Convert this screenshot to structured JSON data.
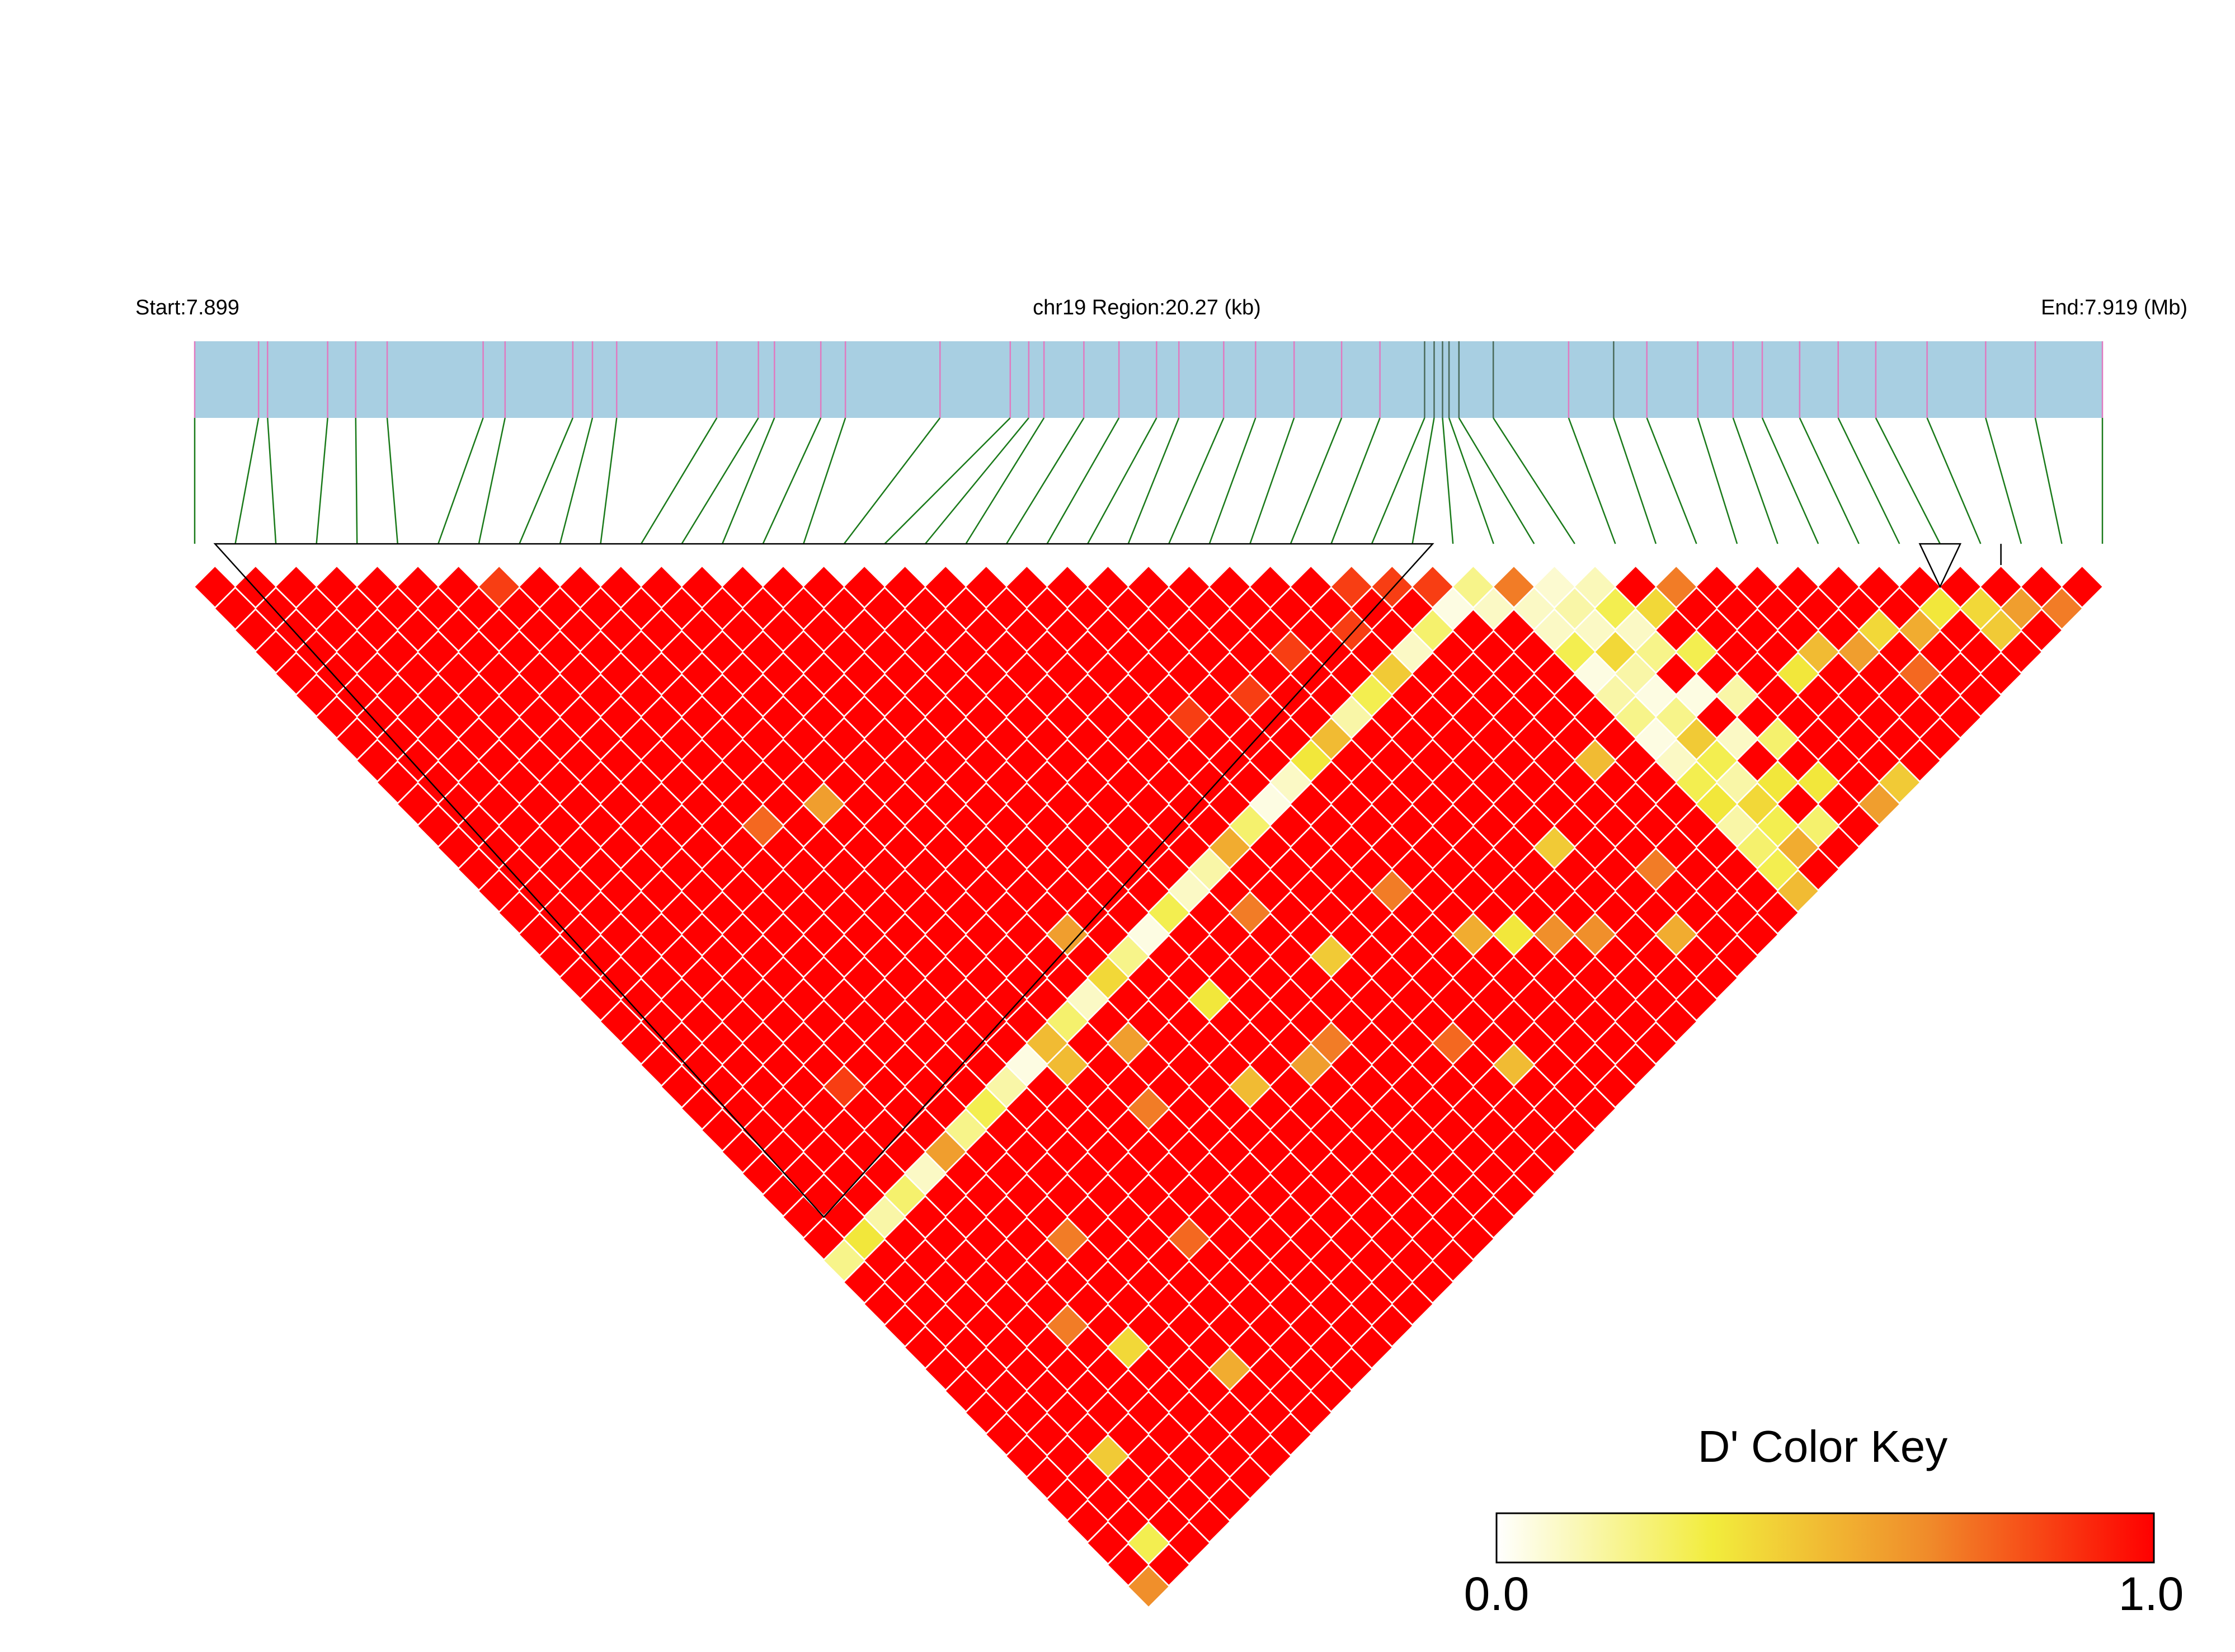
{
  "header": {
    "start_label": "Start:7.899",
    "region_label": "chr19 Region:20.27 (kb)",
    "end_label": "End:7.919 (Mb)"
  },
  "legend": {
    "title": "D' Color Key",
    "min_label": "0.0",
    "max_label": "1.0",
    "gradient_colors": [
      "#ffffff",
      "#f2ec3c",
      "#f08a2a",
      "#ff0000"
    ]
  },
  "chart_data": {
    "type": "heatmap",
    "title": "",
    "chromosome": "chr19",
    "region_start_mb": 7.899,
    "region_end_mb": 7.919,
    "region_length_kb": 20.27,
    "snp_count": 48,
    "value_range": [
      0,
      1
    ],
    "snp_fraction_positions": [
      0.0,
      0.0335,
      0.0382,
      0.0697,
      0.0844,
      0.1009,
      0.1512,
      0.1627,
      0.1982,
      0.2085,
      0.2212,
      0.2737,
      0.2955,
      0.3039,
      0.3282,
      0.3411,
      0.3907,
      0.4275,
      0.4372,
      0.4452,
      0.4661,
      0.4845,
      0.5042,
      0.5159,
      0.5394,
      0.5561,
      0.5763,
      0.6012,
      0.6213,
      0.6447,
      0.6497,
      0.6541,
      0.6575,
      0.6627,
      0.6807,
      0.7202,
      0.7438,
      0.7612,
      0.7879,
      0.8064,
      0.8217,
      0.8413,
      0.8615,
      0.8812,
      0.9081,
      0.9388,
      0.9648,
      1.0
    ],
    "ld_blocks": [
      {
        "first_snp": 1,
        "last_snp": 32
      },
      {
        "first_snp": 43,
        "last_snp": 45
      },
      {
        "first_snp": 45,
        "last_snp": 46
      }
    ],
    "dprime_default": 1.0,
    "dprime_exceptions": [
      [
        11,
        22,
        0.6
      ],
      [
        22,
        29,
        0.85
      ],
      [
        8,
        9,
        0.85
      ],
      [
        29,
        30,
        0.85
      ],
      [
        26,
        30,
        0.85
      ],
      [
        28,
        31,
        0.85
      ],
      [
        30,
        31,
        0.85
      ],
      [
        5,
        29,
        0.85
      ],
      [
        24,
        30,
        0.85
      ],
      [
        31,
        32,
        0.85
      ],
      [
        32,
        33,
        0.2
      ],
      [
        33,
        34,
        0.7
      ],
      [
        34,
        35,
        0.08
      ],
      [
        35,
        36,
        0.12
      ],
      [
        33,
        35,
        0.1
      ],
      [
        34,
        36,
        0.15
      ],
      [
        32,
        34,
        0.1
      ],
      [
        31,
        33,
        0.05
      ],
      [
        30,
        33,
        0.25
      ],
      [
        29,
        33,
        0.1
      ],
      [
        28,
        33,
        0.45
      ],
      [
        27,
        33,
        0.3
      ],
      [
        26,
        33,
        0.15
      ],
      [
        25,
        33,
        0.5
      ],
      [
        24,
        33,
        0.35
      ],
      [
        23,
        33,
        0.1
      ],
      [
        22,
        33,
        0.05
      ],
      [
        21,
        33,
        0.25
      ],
      [
        20,
        33,
        0.55
      ],
      [
        19,
        33,
        0.15
      ],
      [
        18,
        33,
        0.1
      ],
      [
        17,
        33,
        0.3
      ],
      [
        16,
        33,
        0.05
      ],
      [
        15,
        33,
        0.2
      ],
      [
        14,
        33,
        0.4
      ],
      [
        13,
        33,
        0.1
      ],
      [
        12,
        33,
        0.25
      ],
      [
        11,
        33,
        0.5
      ],
      [
        10,
        33,
        0.05
      ],
      [
        9,
        33,
        0.15
      ],
      [
        8,
        33,
        0.3
      ],
      [
        7,
        33,
        0.2
      ],
      [
        6,
        33,
        0.6
      ],
      [
        5,
        33,
        0.1
      ],
      [
        4,
        33,
        0.25
      ],
      [
        3,
        33,
        0.15
      ],
      [
        2,
        33,
        0.35
      ],
      [
        1,
        33,
        0.2
      ],
      [
        33,
        36,
        0.1
      ],
      [
        33,
        37,
        0.3
      ],
      [
        33,
        38,
        0.05
      ],
      [
        33,
        39,
        0.15
      ],
      [
        33,
        40,
        0.2
      ],
      [
        33,
        41,
        0.05
      ],
      [
        33,
        42,
        0.1
      ],
      [
        33,
        43,
        0.3
      ],
      [
        33,
        44,
        0.35
      ],
      [
        33,
        45,
        0.15
      ],
      [
        33,
        46,
        0.25
      ],
      [
        33,
        47,
        0.3
      ],
      [
        33,
        48,
        0.5
      ],
      [
        34,
        37,
        0.1
      ],
      [
        34,
        38,
        0.4
      ],
      [
        34,
        39,
        0.15
      ],
      [
        34,
        40,
        0.05
      ],
      [
        34,
        41,
        0.2
      ],
      [
        34,
        42,
        0.45
      ],
      [
        34,
        43,
        0.3
      ],
      [
        34,
        44,
        0.15
      ],
      [
        34,
        45,
        0.4
      ],
      [
        34,
        46,
        0.3
      ],
      [
        34,
        47,
        0.55
      ],
      [
        35,
        37,
        0.3
      ],
      [
        35,
        38,
        0.1
      ],
      [
        35,
        39,
        0.2
      ],
      [
        35,
        41,
        0.05
      ],
      [
        35,
        43,
        0.1
      ],
      [
        35,
        45,
        0.35
      ],
      [
        35,
        47,
        0.25
      ],
      [
        36,
        38,
        0.4
      ],
      [
        36,
        40,
        0.3
      ],
      [
        36,
        42,
        0.15
      ],
      [
        36,
        44,
        0.25
      ],
      [
        36,
        46,
        0.35
      ],
      [
        37,
        38,
        0.7
      ],
      [
        39,
        43,
        0.5
      ],
      [
        38,
        43,
        0.35
      ],
      [
        40,
        44,
        0.6
      ],
      [
        41,
        44,
        0.4
      ],
      [
        42,
        45,
        0.55
      ],
      [
        43,
        45,
        0.35
      ],
      [
        44,
        46,
        0.4
      ],
      [
        45,
        47,
        0.6
      ],
      [
        44,
        47,
        0.45
      ],
      [
        46,
        48,
        0.7
      ],
      [
        41,
        46,
        0.75
      ],
      [
        38,
        48,
        0.45
      ],
      [
        37,
        48,
        0.6
      ],
      [
        20,
        38,
        0.45
      ],
      [
        23,
        38,
        0.7
      ],
      [
        24,
        41,
        0.55
      ],
      [
        26,
        43,
        0.65
      ],
      [
        14,
        31,
        0.6
      ],
      [
        9,
        21,
        0.75
      ],
      [
        11,
        34,
        0.5
      ],
      [
        19,
        35,
        0.7
      ],
      [
        17,
        40,
        0.6
      ],
      [
        21,
        43,
        0.75
      ],
      [
        15,
        39,
        0.5
      ],
      [
        5,
        40,
        0.7
      ],
      [
        3,
        44,
        0.45
      ],
      [
        1,
        48,
        0.65
      ],
      [
        2,
        47,
        0.3
      ],
      [
        6,
        42,
        0.4
      ],
      [
        12,
        37,
        0.7
      ],
      [
        8,
        45,
        0.55
      ],
      [
        10,
        41,
        0.75
      ],
      [
        13,
        35,
        0.6
      ],
      [
        16,
        36,
        0.35
      ],
      [
        18,
        40,
        0.7
      ],
      [
        22,
        45,
        0.5
      ],
      [
        25,
        42,
        0.35
      ],
      [
        27,
        44,
        0.65
      ],
      [
        28,
        41,
        0.45
      ],
      [
        29,
        46,
        0.55
      ],
      [
        30,
        44,
        0.7
      ],
      [
        31,
        40,
        0.5
      ],
      [
        7,
        38,
        0.7
      ]
    ]
  }
}
